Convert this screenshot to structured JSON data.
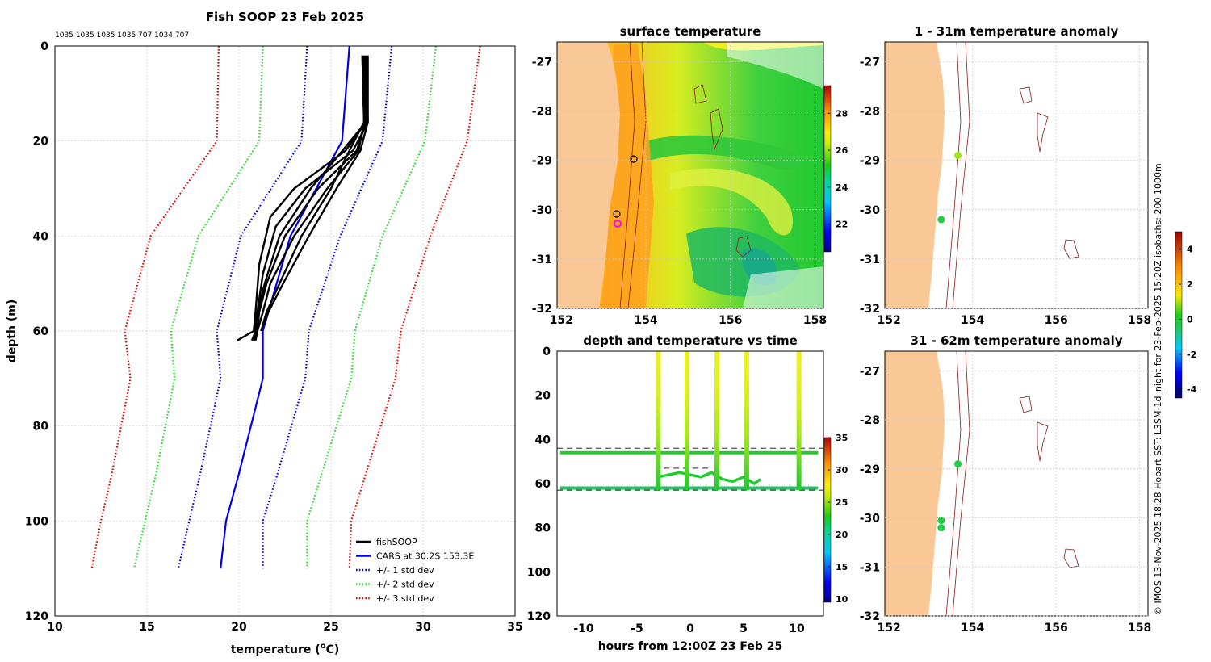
{
  "chart_data": [
    {
      "type": "line",
      "panel": "profile",
      "title": "Fish SOOP 23 Feb 2025",
      "cast_ids": "1035 1035 1035 1035 707 1034 707",
      "xlabel": "temperature (",
      "xlabel_sup": "o",
      "xlabel_end": "C)",
      "ylabel": "depth (m)",
      "xlim": [
        10,
        35
      ],
      "ylim": [
        0,
        120
      ],
      "x_ticks": [
        "10",
        "15",
        "20",
        "25",
        "30",
        "35"
      ],
      "y_ticks": [
        "0",
        "20",
        "40",
        "60",
        "80",
        "100",
        "120"
      ],
      "legend": [
        "fishSOOP",
        "CARS at 30.2S 153.3E",
        "+/- 1 std dev",
        "+/- 2 std dev",
        "+/- 3 std dev"
      ],
      "colors": {
        "fish": "#000000",
        "cars": "#0000ee",
        "std1": "#0000ee",
        "std2": "#22dd22",
        "std3": "#ee0000"
      },
      "depths": [
        0,
        20,
        40,
        60,
        70,
        90,
        100,
        110
      ],
      "cars": [
        26.0,
        25.6,
        22.8,
        21.3,
        21.3,
        20.0,
        19.3,
        19.0
      ],
      "std_offsets": [
        [
          2.3,
          2.2,
          2.7,
          2.5,
          2.3,
          2.1,
          2.0,
          2.3
        ],
        [
          4.7,
          4.5,
          5.0,
          5.0,
          4.8,
          4.5,
          4.4,
          4.7
        ],
        [
          7.1,
          6.8,
          7.6,
          7.5,
          7.2,
          6.9,
          6.8,
          7.0
        ]
      ],
      "fish_profiles": [
        {
          "d": [
            2,
            16,
            22,
            30,
            40,
            50,
            56,
            60,
            62
          ],
          "t": [
            26.7,
            26.8,
            26.5,
            24.8,
            23.0,
            21.7,
            21.3,
            21.0,
            20.9
          ]
        },
        {
          "d": [
            2,
            16,
            22,
            30,
            40,
            50,
            56,
            60,
            62
          ],
          "t": [
            26.8,
            26.9,
            26.4,
            24.3,
            22.5,
            21.5,
            21.1,
            21.0,
            20.8
          ]
        },
        {
          "d": [
            2,
            16,
            22,
            30,
            38,
            48,
            56,
            60,
            62
          ],
          "t": [
            26.9,
            27.0,
            26.2,
            23.6,
            22.0,
            21.3,
            21.0,
            20.9,
            20.7
          ]
        },
        {
          "d": [
            2,
            16,
            22,
            30,
            36,
            46,
            56,
            60,
            62
          ],
          "t": [
            26.8,
            26.9,
            25.8,
            23.0,
            21.7,
            21.1,
            20.9,
            20.8,
            19.9
          ]
        },
        {
          "d": [
            2,
            16,
            22,
            30,
            40,
            50,
            56,
            60
          ],
          "t": [
            26.7,
            26.8,
            26.0,
            25.0,
            23.4,
            22.2,
            21.5,
            21.2
          ]
        },
        {
          "d": [
            2,
            16,
            22,
            30,
            40,
            50,
            56,
            60
          ],
          "t": [
            27.0,
            27.0,
            26.6,
            25.3,
            23.8,
            22.4,
            21.6,
            21.2
          ]
        },
        {
          "d": [
            2,
            16,
            24,
            30,
            40,
            50,
            56,
            60
          ],
          "t": [
            26.9,
            26.9,
            25.2,
            23.9,
            22.2,
            21.4,
            21.0,
            20.9
          ]
        }
      ]
    },
    {
      "type": "heatmap",
      "panel": "surface",
      "title": "surface temperature",
      "x_ticks": [
        "152",
        "154",
        "156",
        "158"
      ],
      "y_ticks": [
        "-27",
        "-28",
        "-29",
        "-30",
        "-31",
        "-32"
      ],
      "xlim": [
        151.9,
        158.2
      ],
      "ylim": [
        -32,
        -26.6
      ],
      "colorbar": {
        "min": 20.5,
        "max": 29.5,
        "ticks": [
          "22",
          "24",
          "26",
          "28"
        ]
      }
    },
    {
      "type": "scatter",
      "panel": "time",
      "title": "depth and temperature vs time",
      "xlabel": "hours from 12:00Z 23 Feb 25",
      "xlim": [
        -12.5,
        12.5
      ],
      "ylim": [
        0,
        120
      ],
      "x_ticks": [
        "-10",
        "-5",
        "0",
        "5",
        "10"
      ],
      "y_ticks": [
        "0",
        "20",
        "40",
        "60",
        "80",
        "100",
        "120"
      ],
      "casts_hours": [
        -3,
        -0.3,
        2.5,
        5.3,
        10.2
      ],
      "cast_temp_top": 28,
      "dashed_depths": [
        44,
        53,
        63
      ],
      "colorbar": {
        "min": 9.5,
        "max": 35,
        "ticks": [
          "10",
          "15",
          "20",
          "25",
          "30",
          "35"
        ]
      }
    },
    {
      "type": "scatter",
      "panel": "anomaly1",
      "title": "1 - 31m temperature anomaly",
      "x_ticks": [
        "152",
        "154",
        "156",
        "158"
      ],
      "y_ticks": [
        "-27",
        "-28",
        "-29",
        "-30",
        "-31",
        "-32"
      ],
      "points": [
        {
          "lon": 153.65,
          "lat": -28.9,
          "anom": 0.8
        },
        {
          "lon": 153.25,
          "lat": -30.2,
          "anom": 0.3
        }
      ]
    },
    {
      "type": "scatter",
      "panel": "anomaly2",
      "title": "31 - 62m temperature anomaly",
      "x_ticks": [
        "152",
        "154",
        "156",
        "158"
      ],
      "y_ticks": [
        "-27",
        "-28",
        "-29",
        "-30",
        "-31",
        "-32"
      ],
      "points": [
        {
          "lon": 153.65,
          "lat": -28.9,
          "anom": 0.4
        },
        {
          "lon": 153.25,
          "lat": -30.05,
          "anom": 0.2
        },
        {
          "lon": 153.25,
          "lat": -30.2,
          "anom": 0.2
        }
      ],
      "colorbar": {
        "min": -4.5,
        "max": 5,
        "ticks": [
          "4",
          "2",
          "0",
          "-2",
          "-4"
        ]
      }
    }
  ],
  "credit": "© IMOS 13-Nov-2025 18:28 Hobart SST: L3SM-1d_night for 23-Feb-2025 15:20Z isobaths: 200  1000m"
}
